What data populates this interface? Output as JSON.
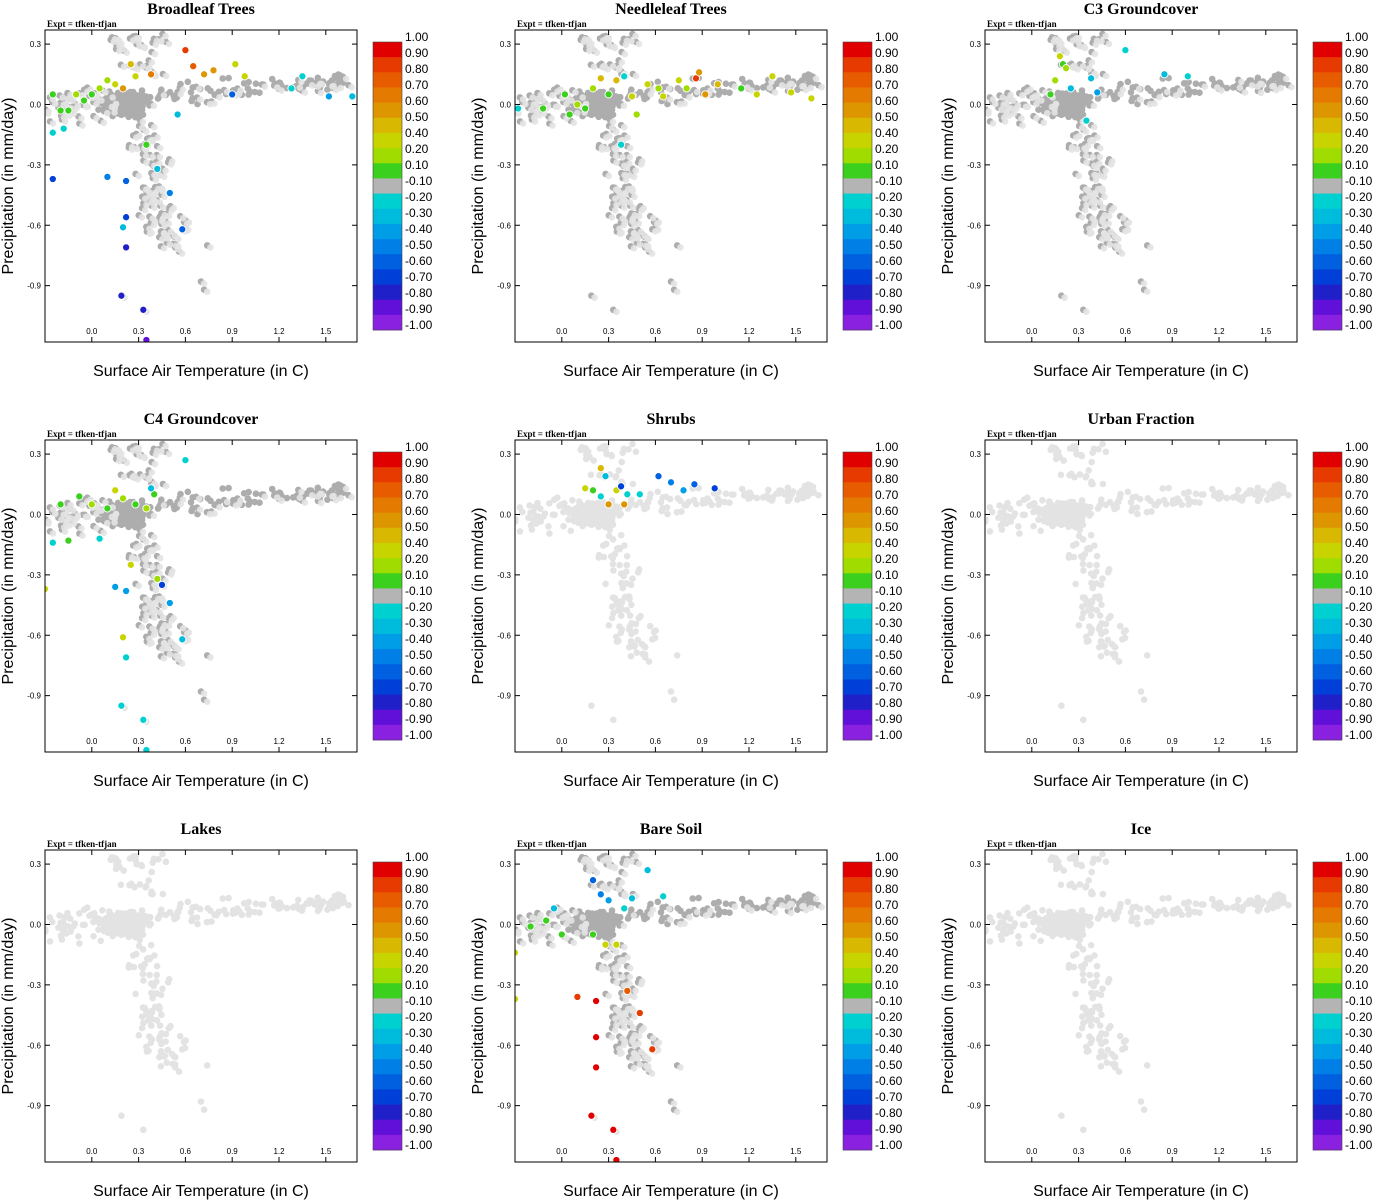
{
  "experiment_label": "Expt = tfken-tfjan",
  "xlabel": "Surface Air Temperature (in C)",
  "ylabel": "Precipitation (in mm/day)",
  "x_ticks": [
    "0.0",
    "0.3",
    "0.6",
    "0.9",
    "1.2",
    "1.5"
  ],
  "y_ticks": [
    "0.3",
    "0.0",
    "-0.3",
    "-0.6",
    "-0.9"
  ],
  "xlim": [
    -0.3,
    1.7
  ],
  "ylim": [
    -1.18,
    0.37
  ],
  "colorbar": {
    "labels": [
      "1.00",
      "0.90",
      "0.80",
      "0.70",
      "0.60",
      "0.50",
      "0.40",
      "0.20",
      "0.10",
      "-0.10",
      "-0.20",
      "-0.30",
      "-0.40",
      "-0.50",
      "-0.60",
      "-0.70",
      "-0.80",
      "-0.90",
      "-1.00"
    ],
    "colors": [
      "#e00000",
      "#e63a00",
      "#e85c00",
      "#e57a00",
      "#de9600",
      "#d8b800",
      "#c8d400",
      "#a0dc00",
      "#3cd01e",
      "#b4b4b4",
      "#00d0d0",
      "#00bcdc",
      "#009ee6",
      "#0080e6",
      "#0060e0",
      "#0040d8",
      "#2020c8",
      "#6010d8",
      "#8a20e0"
    ]
  },
  "missing_color": "#e3e3e3",
  "neutral_color": "#adadad",
  "chart_data": [
    {
      "type": "scatter",
      "title": "Broadleaf Trees",
      "background_style": "neutral",
      "colored_points": [
        {
          "x": -0.25,
          "y": 0.05,
          "v": 0.1
        },
        {
          "x": -0.2,
          "y": -0.03,
          "v": 0.1
        },
        {
          "x": -0.15,
          "y": -0.03,
          "v": 0.1
        },
        {
          "x": -0.1,
          "y": 0.05,
          "v": 0.15
        },
        {
          "x": -0.05,
          "y": 0.02,
          "v": 0.1
        },
        {
          "x": 0.0,
          "y": 0.05,
          "v": 0.1
        },
        {
          "x": 0.05,
          "y": 0.08,
          "v": 0.15
        },
        {
          "x": 0.1,
          "y": 0.12,
          "v": 0.2
        },
        {
          "x": 0.15,
          "y": 0.1,
          "v": 0.4
        },
        {
          "x": 0.2,
          "y": 0.08,
          "v": 0.55
        },
        {
          "x": 0.25,
          "y": 0.2,
          "v": 0.5
        },
        {
          "x": 0.28,
          "y": 0.14,
          "v": 0.3
        },
        {
          "x": 0.38,
          "y": 0.15,
          "v": 0.7
        },
        {
          "x": 0.6,
          "y": 0.27,
          "v": 0.85
        },
        {
          "x": 0.65,
          "y": 0.19,
          "v": 0.75
        },
        {
          "x": 0.72,
          "y": 0.15,
          "v": 0.6
        },
        {
          "x": 0.78,
          "y": 0.17,
          "v": 0.55
        },
        {
          "x": 0.92,
          "y": 0.2,
          "v": 0.4
        },
        {
          "x": 0.98,
          "y": 0.14,
          "v": 0.3
        },
        {
          "x": 1.35,
          "y": 0.14,
          "v": -0.25
        },
        {
          "x": 1.52,
          "y": 0.04,
          "v": -0.4
        },
        {
          "x": 1.67,
          "y": 0.04,
          "v": -0.35
        },
        {
          "x": -0.25,
          "y": -0.14,
          "v": -0.25
        },
        {
          "x": -0.18,
          "y": -0.12,
          "v": -0.2
        },
        {
          "x": -0.25,
          "y": -0.37,
          "v": -0.75
        },
        {
          "x": 0.1,
          "y": -0.36,
          "v": -0.55
        },
        {
          "x": 0.22,
          "y": -0.38,
          "v": -0.65
        },
        {
          "x": 0.22,
          "y": -0.56,
          "v": -0.7
        },
        {
          "x": 0.2,
          "y": -0.61,
          "v": -0.3
        },
        {
          "x": 0.22,
          "y": -0.71,
          "v": -0.85
        },
        {
          "x": 0.19,
          "y": -0.95,
          "v": -0.8
        },
        {
          "x": 0.33,
          "y": -1.02,
          "v": -0.8
        },
        {
          "x": 0.35,
          "y": -1.17,
          "v": -0.9
        },
        {
          "x": 0.58,
          "y": -0.62,
          "v": -0.6
        },
        {
          "x": 0.5,
          "y": -0.44,
          "v": -0.55
        },
        {
          "x": 0.35,
          "y": -0.2,
          "v": 0.1
        },
        {
          "x": 0.42,
          "y": -0.32,
          "v": -0.3
        },
        {
          "x": 0.55,
          "y": -0.05,
          "v": -0.3
        },
        {
          "x": 0.9,
          "y": 0.05,
          "v": -0.6
        },
        {
          "x": 1.28,
          "y": 0.08,
          "v": -0.25
        }
      ]
    },
    {
      "type": "scatter",
      "title": "Needleleaf Trees",
      "background_style": "neutral",
      "colored_points": [
        {
          "x": -0.28,
          "y": -0.02,
          "v": -0.25
        },
        {
          "x": -0.12,
          "y": -0.02,
          "v": 0.1
        },
        {
          "x": 0.02,
          "y": 0.05,
          "v": 0.1
        },
        {
          "x": 0.05,
          "y": -0.05,
          "v": 0.1
        },
        {
          "x": 0.1,
          "y": 0.0,
          "v": 0.15
        },
        {
          "x": 0.2,
          "y": 0.08,
          "v": 0.2
        },
        {
          "x": 0.25,
          "y": 0.13,
          "v": 0.5
        },
        {
          "x": 0.35,
          "y": 0.12,
          "v": 0.45
        },
        {
          "x": 0.4,
          "y": 0.14,
          "v": -0.2
        },
        {
          "x": 0.45,
          "y": 0.04,
          "v": 0.3
        },
        {
          "x": 0.55,
          "y": 0.1,
          "v": 0.35
        },
        {
          "x": 0.62,
          "y": 0.08,
          "v": 0.2
        },
        {
          "x": 0.75,
          "y": 0.12,
          "v": 0.3
        },
        {
          "x": 0.8,
          "y": 0.08,
          "v": 0.15
        },
        {
          "x": 0.86,
          "y": 0.13,
          "v": 0.85
        },
        {
          "x": 0.88,
          "y": 0.16,
          "v": 0.55
        },
        {
          "x": 0.92,
          "y": 0.05,
          "v": 0.6
        },
        {
          "x": 1.0,
          "y": 0.1,
          "v": 0.45
        },
        {
          "x": 1.15,
          "y": 0.08,
          "v": 0.1
        },
        {
          "x": 1.25,
          "y": 0.05,
          "v": 0.3
        },
        {
          "x": 1.35,
          "y": 0.14,
          "v": 0.35
        },
        {
          "x": 1.47,
          "y": 0.06,
          "v": 0.25
        },
        {
          "x": 1.6,
          "y": 0.03,
          "v": 0.4
        },
        {
          "x": 0.38,
          "y": -0.2,
          "v": -0.25
        },
        {
          "x": 0.48,
          "y": -0.05,
          "v": 0.2
        },
        {
          "x": 0.65,
          "y": 0.04,
          "v": 0.3
        },
        {
          "x": 0.3,
          "y": 0.05,
          "v": 0.1
        },
        {
          "x": 0.15,
          "y": -0.02,
          "v": 0.1
        }
      ]
    },
    {
      "type": "scatter",
      "title": "C3 Groundcover",
      "background_style": "neutral",
      "colored_points": [
        {
          "x": 0.18,
          "y": 0.24,
          "v": 0.3
        },
        {
          "x": 0.2,
          "y": 0.2,
          "v": 0.1
        },
        {
          "x": 0.22,
          "y": 0.18,
          "v": 0.15
        },
        {
          "x": 0.15,
          "y": 0.12,
          "v": 0.15
        },
        {
          "x": 0.12,
          "y": 0.05,
          "v": 0.1
        },
        {
          "x": 0.25,
          "y": 0.08,
          "v": -0.3
        },
        {
          "x": 0.38,
          "y": 0.13,
          "v": -0.35
        },
        {
          "x": 0.42,
          "y": 0.06,
          "v": -0.4
        },
        {
          "x": 0.6,
          "y": 0.27,
          "v": -0.25
        },
        {
          "x": 0.85,
          "y": 0.15,
          "v": -0.3
        },
        {
          "x": 1.0,
          "y": 0.14,
          "v": -0.2
        },
        {
          "x": 0.35,
          "y": -0.08,
          "v": -0.2
        }
      ]
    },
    {
      "type": "scatter",
      "title": "C4 Groundcover",
      "background_style": "neutral",
      "colored_points": [
        {
          "x": -0.25,
          "y": -0.14,
          "v": -0.25
        },
        {
          "x": -0.2,
          "y": 0.05,
          "v": 0.1
        },
        {
          "x": -0.15,
          "y": -0.13,
          "v": 0.1
        },
        {
          "x": -0.08,
          "y": 0.09,
          "v": 0.1
        },
        {
          "x": 0.0,
          "y": 0.05,
          "v": 0.15
        },
        {
          "x": 0.05,
          "y": -0.12,
          "v": -0.25
        },
        {
          "x": 0.1,
          "y": 0.03,
          "v": 0.1
        },
        {
          "x": 0.15,
          "y": 0.12,
          "v": 0.3
        },
        {
          "x": 0.2,
          "y": 0.08,
          "v": 0.2
        },
        {
          "x": 0.28,
          "y": 0.05,
          "v": 0.1
        },
        {
          "x": 0.35,
          "y": 0.03,
          "v": 0.15
        },
        {
          "x": 0.4,
          "y": 0.1,
          "v": 0.1
        },
        {
          "x": 0.38,
          "y": 0.13,
          "v": -0.3
        },
        {
          "x": 0.6,
          "y": 0.27,
          "v": -0.25
        },
        {
          "x": 0.25,
          "y": -0.25,
          "v": 0.35
        },
        {
          "x": 0.15,
          "y": -0.36,
          "v": -0.4
        },
        {
          "x": 0.22,
          "y": -0.38,
          "v": -0.45
        },
        {
          "x": 0.42,
          "y": -0.32,
          "v": 0.2
        },
        {
          "x": 0.45,
          "y": -0.35,
          "v": -0.7
        },
        {
          "x": 0.2,
          "y": -0.61,
          "v": 0.3
        },
        {
          "x": 0.22,
          "y": -0.71,
          "v": -0.25
        },
        {
          "x": 0.19,
          "y": -0.95,
          "v": -0.2
        },
        {
          "x": 0.33,
          "y": -1.02,
          "v": -0.25
        },
        {
          "x": 0.35,
          "y": -1.17,
          "v": -0.2
        },
        {
          "x": 0.58,
          "y": -0.62,
          "v": -0.35
        },
        {
          "x": 0.5,
          "y": -0.44,
          "v": -0.4
        },
        {
          "x": -0.3,
          "y": -0.37,
          "v": 0.35
        }
      ]
    },
    {
      "type": "scatter",
      "title": "Shrubs",
      "background_style": "light",
      "colored_points": [
        {
          "x": 0.15,
          "y": 0.13,
          "v": 0.35
        },
        {
          "x": 0.2,
          "y": 0.12,
          "v": 0.1
        },
        {
          "x": 0.25,
          "y": 0.23,
          "v": 0.45
        },
        {
          "x": 0.28,
          "y": 0.19,
          "v": -0.35
        },
        {
          "x": 0.25,
          "y": 0.09,
          "v": -0.2
        },
        {
          "x": 0.3,
          "y": 0.05,
          "v": 0.55
        },
        {
          "x": 0.35,
          "y": 0.12,
          "v": 0.4
        },
        {
          "x": 0.38,
          "y": 0.14,
          "v": -0.75
        },
        {
          "x": 0.42,
          "y": 0.1,
          "v": -0.25
        },
        {
          "x": 0.4,
          "y": 0.05,
          "v": 0.6
        },
        {
          "x": 0.5,
          "y": 0.1,
          "v": -0.25
        },
        {
          "x": 0.62,
          "y": 0.19,
          "v": -0.6
        },
        {
          "x": 0.7,
          "y": 0.16,
          "v": -0.5
        },
        {
          "x": 0.78,
          "y": 0.12,
          "v": -0.45
        },
        {
          "x": 0.85,
          "y": 0.15,
          "v": -0.65
        },
        {
          "x": 0.98,
          "y": 0.13,
          "v": -0.75
        }
      ]
    },
    {
      "type": "scatter",
      "title": "Urban Fraction",
      "background_style": "light",
      "colored_points": []
    },
    {
      "type": "scatter",
      "title": "Lakes",
      "background_style": "light",
      "colored_points": []
    },
    {
      "type": "scatter",
      "title": "Bare Soil",
      "background_style": "neutral",
      "colored_points": [
        {
          "x": 0.2,
          "y": 0.22,
          "v": -0.6
        },
        {
          "x": 0.25,
          "y": 0.15,
          "v": -0.5
        },
        {
          "x": 0.3,
          "y": 0.12,
          "v": -0.4
        },
        {
          "x": 0.4,
          "y": 0.08,
          "v": -0.25
        },
        {
          "x": 0.45,
          "y": 0.13,
          "v": -0.3
        },
        {
          "x": 0.55,
          "y": 0.27,
          "v": -0.3
        },
        {
          "x": 0.65,
          "y": 0.14,
          "v": -0.2
        },
        {
          "x": -0.05,
          "y": 0.08,
          "v": -0.3
        },
        {
          "x": -0.1,
          "y": 0.02,
          "v": 0.1
        },
        {
          "x": -0.2,
          "y": -0.01,
          "v": 0.1
        },
        {
          "x": -0.3,
          "y": -0.14,
          "v": 0.35
        },
        {
          "x": 0.0,
          "y": -0.05,
          "v": 0.1
        },
        {
          "x": 0.2,
          "y": -0.05,
          "v": 0.1
        },
        {
          "x": 0.28,
          "y": -0.1,
          "v": 0.25
        },
        {
          "x": 0.35,
          "y": -0.1,
          "v": 0.4
        },
        {
          "x": -0.3,
          "y": -0.37,
          "v": 0.35
        },
        {
          "x": 0.1,
          "y": -0.36,
          "v": 0.9
        },
        {
          "x": 0.22,
          "y": -0.38,
          "v": 1.0
        },
        {
          "x": 0.42,
          "y": -0.33,
          "v": 0.8
        },
        {
          "x": 0.5,
          "y": -0.44,
          "v": 0.9
        },
        {
          "x": 0.22,
          "y": -0.56,
          "v": 0.95
        },
        {
          "x": 0.58,
          "y": -0.62,
          "v": 0.85
        },
        {
          "x": 0.22,
          "y": -0.71,
          "v": 1.0
        },
        {
          "x": 0.19,
          "y": -0.95,
          "v": 0.95
        },
        {
          "x": 0.33,
          "y": -1.02,
          "v": 0.95
        },
        {
          "x": 0.35,
          "y": -1.17,
          "v": 1.0
        }
      ]
    },
    {
      "type": "scatter",
      "title": "Ice",
      "background_style": "light",
      "colored_points": []
    }
  ]
}
